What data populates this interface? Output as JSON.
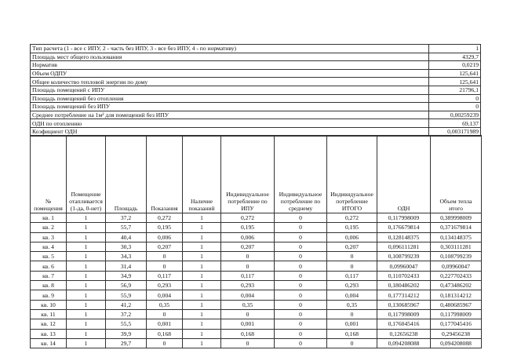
{
  "summary": [
    {
      "label": "Тип расчета (1 - все с ИПУ, 2 - часть без ИПУ, 3 - все без ИПУ, 4 - по нормативу)",
      "value": "1"
    },
    {
      "label": "Площадь мест общего пользования",
      "value": "4329,7"
    },
    {
      "label": "Норматив",
      "value": "0,0219"
    },
    {
      "label": "Объем ОДПУ",
      "value": "125,641"
    },
    {
      "label": "Общее количество тепловой энергии по дому",
      "value": "125,641"
    },
    {
      "label": "Площадь помещений с ИПУ",
      "value": "21796,1"
    },
    {
      "label": "Площадь помещений без отопления",
      "value": "0"
    },
    {
      "label": "Площадь помещений без ИПУ",
      "value": "0"
    },
    {
      "label": "Среднее потребление на 1м² для помещений без ИПУ",
      "value": "0,00259239"
    },
    {
      "label": "ОДН по отоплению",
      "value": "69,137"
    },
    {
      "label": "Коэфициент ОДН",
      "value": "0,003171989"
    }
  ],
  "columns": [
    "№ помещения",
    "Помещение отапливается (1-да, 0-нет)",
    "Площадь",
    "Показания",
    "Наличие показаний",
    "Индивидуальное потребление по ИПУ",
    "Индивидуальное потребление по среднему",
    "Индивидуальное потребление ИТОГО",
    "ОДН",
    "Объем тепла итого"
  ],
  "rows": [
    [
      "кв. 1",
      "1",
      "37,2",
      "0,272",
      "1",
      "0,272",
      "0",
      "0,272",
      "0,117998009",
      "0,389998009"
    ],
    [
      "кв. 2",
      "1",
      "55,7",
      "0,195",
      "1",
      "0,195",
      "0",
      "0,195",
      "0,176679814",
      "0,371679814"
    ],
    [
      "кв. 3",
      "1",
      "40,4",
      "0,006",
      "1",
      "0,006",
      "0",
      "0,006",
      "0,128148375",
      "0,134148375"
    ],
    [
      "кв. 4",
      "1",
      "30,3",
      "0,207",
      "1",
      "0,207",
      "0",
      "0,207",
      "0,096111281",
      "0,303111281"
    ],
    [
      "кв. 5",
      "1",
      "34,3",
      "0",
      "1",
      "0",
      "0",
      "0",
      "0,108799239",
      "0,108799239"
    ],
    [
      "кв. 6",
      "1",
      "31,4",
      "0",
      "1",
      "0",
      "0",
      "0",
      "0,09960047",
      "0,09960047"
    ],
    [
      "кв. 7",
      "1",
      "34,9",
      "0,117",
      "1",
      "0,117",
      "0",
      "0,117",
      "0,110702433",
      "0,227702433"
    ],
    [
      "кв. 8",
      "1",
      "56,9",
      "0,293",
      "1",
      "0,293",
      "0",
      "0,293",
      "0,180486202",
      "0,473486202"
    ],
    [
      "кв. 9",
      "1",
      "55,9",
      "0,004",
      "1",
      "0,004",
      "0",
      "0,004",
      "0,177314212",
      "0,181314212"
    ],
    [
      "кв. 10",
      "1",
      "41,2",
      "0,35",
      "1",
      "0,35",
      "0",
      "0,35",
      "0,130685967",
      "0,480685967"
    ],
    [
      "кв. 11",
      "1",
      "37,2",
      "0",
      "1",
      "0",
      "0",
      "0",
      "0,117998009",
      "0,117998009"
    ],
    [
      "кв. 12",
      "1",
      "55,5",
      "0,001",
      "1",
      "0,001",
      "0",
      "0,001",
      "0,176045416",
      "0,177045416"
    ],
    [
      "кв. 13",
      "1",
      "39,9",
      "0,168",
      "1",
      "0,168",
      "0",
      "0,168",
      "0,12656238",
      "0,29456238"
    ],
    [
      "кв. 14",
      "1",
      "29,7",
      "0",
      "1",
      "0",
      "0",
      "0",
      "0,094208088",
      "0,094208088"
    ]
  ]
}
